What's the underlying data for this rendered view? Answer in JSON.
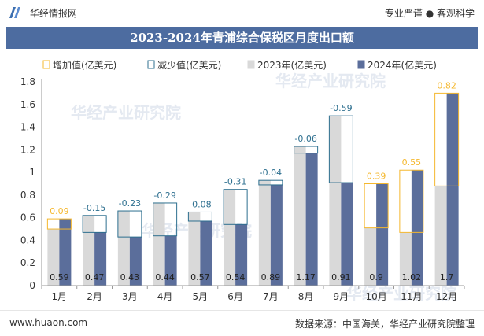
{
  "header": {
    "brand": "华经情报网",
    "tagline": "专业严谨 ● 客观科学",
    "title": "2023-2024年青浦综合保税区月度出口额"
  },
  "footer": {
    "website": "www.huaon.com",
    "source": "数据来源：中国海关，华经产业研究院整理"
  },
  "watermark": "华经产业研究院",
  "colors": {
    "title_bg": "#4d6ca0",
    "bar_2023": "#d9d9d9",
    "bar_2024": "#5b6e9b",
    "increase": "#f5b82e",
    "decrease": "#2d6f8f",
    "increase_label": "#f5b82e",
    "decrease_label": "#2d6f8f"
  },
  "chart_data": {
    "type": "bar",
    "categories": [
      "1月",
      "2月",
      "3月",
      "4月",
      "5月",
      "6月",
      "7月",
      "8月",
      "9月",
      "10月",
      "11月",
      "12月"
    ],
    "series": [
      {
        "name": "2023年(亿美元)",
        "values": [
          0.5,
          0.62,
          0.66,
          0.73,
          0.65,
          0.85,
          0.93,
          1.23,
          1.5,
          0.51,
          0.47,
          0.88
        ]
      },
      {
        "name": "2024年(亿美元)",
        "values": [
          0.59,
          0.47,
          0.43,
          0.44,
          0.57,
          0.54,
          0.89,
          1.17,
          0.91,
          0.9,
          1.02,
          1.7
        ]
      }
    ],
    "changes": [
      0.09,
      -0.15,
      -0.23,
      -0.29,
      -0.08,
      -0.31,
      -0.04,
      -0.06,
      -0.59,
      0.39,
      0.55,
      0.82
    ],
    "change_labels": [
      "0.09",
      "-0.15",
      "-0.23",
      "-0.29",
      "-0.08",
      "-0.31",
      "-0.04",
      "-0.06",
      "-0.59",
      "0.39",
      "0.55",
      "0.82"
    ],
    "value_labels_2024": [
      "0.59",
      "0.47",
      "0.43",
      "0.44",
      "0.57",
      "0.54",
      "0.89",
      "1.17",
      "0.91",
      "0.9",
      "1.02",
      "1.7"
    ],
    "legend": [
      "增加值(亿美元)",
      "减少值(亿美元)",
      "2023年(亿美元)",
      "2024年(亿美元)"
    ],
    "legend_position": "top",
    "ylim": [
      0,
      1.8
    ],
    "yticks": [
      "0",
      "0.2",
      "0.4",
      "0.6",
      "0.8",
      "1",
      "1.2",
      "1.4",
      "1.6",
      "1.8"
    ],
    "ytick_values": [
      0,
      0.2,
      0.4,
      0.6,
      0.8,
      1,
      1.2,
      1.4,
      1.6,
      1.8
    ],
    "grid": false
  }
}
